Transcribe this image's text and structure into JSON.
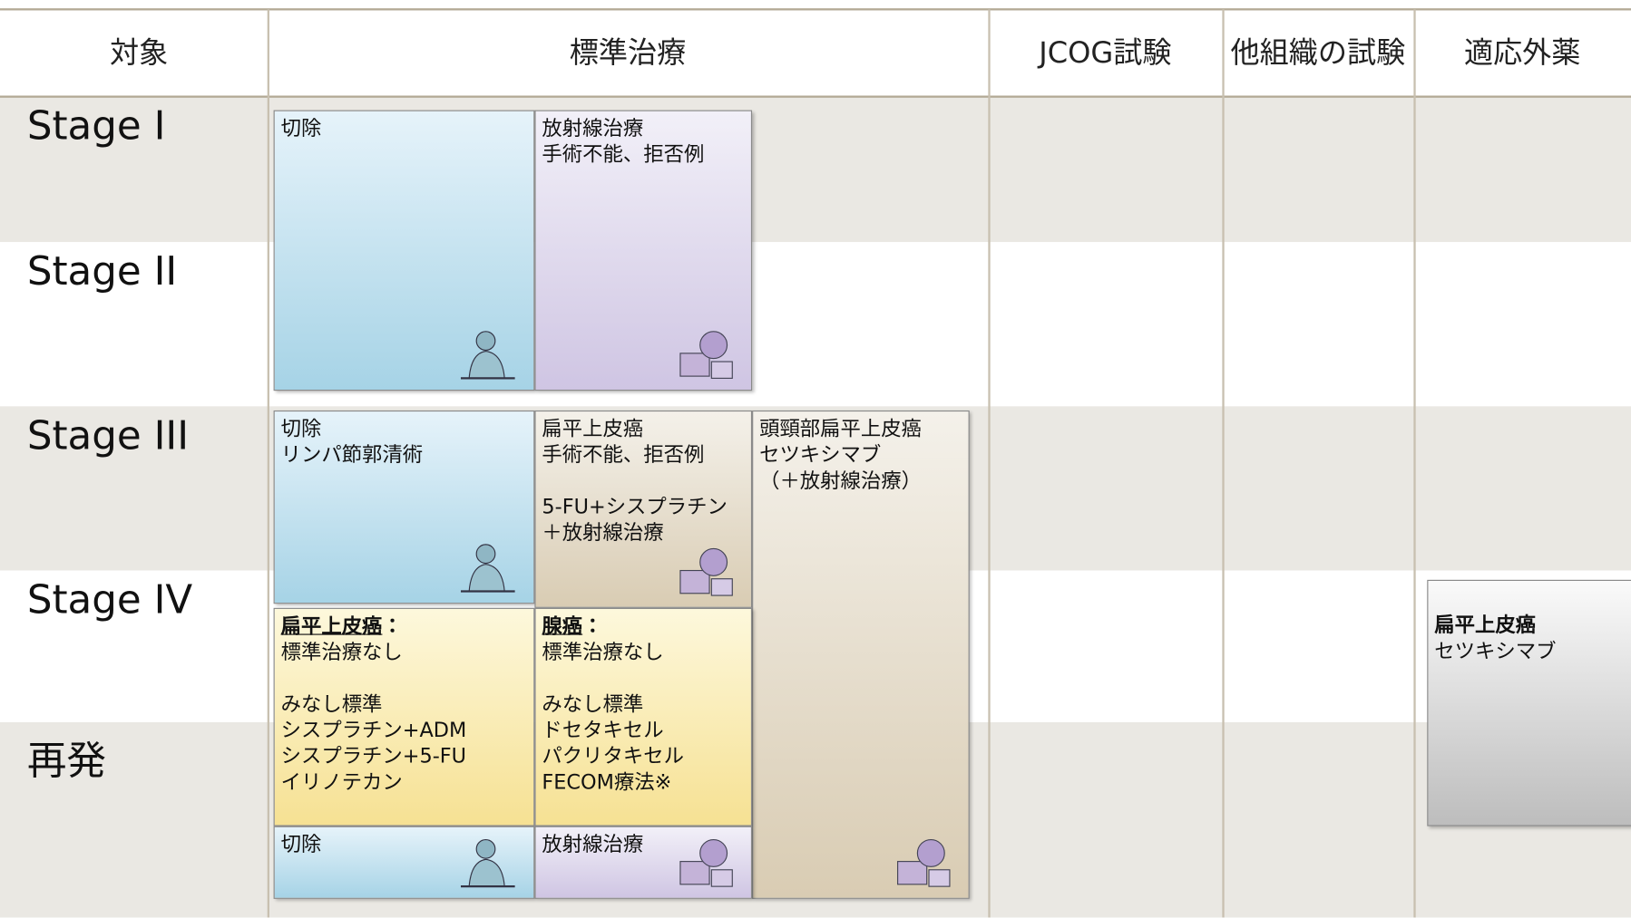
{
  "header": {
    "columns": [
      "対象",
      "標準治療",
      "JCOG試験",
      "他組織の試験",
      "適応外薬"
    ]
  },
  "rows": [
    "Stage I",
    "Stage II",
    "Stage III",
    "Stage IV",
    "再発"
  ],
  "boxes": [
    {
      "paragraphs": [
        [
          "切除"
        ]
      ]
    },
    {
      "paragraphs": [
        [
          "放射線治療",
          "手術不能、拒否例"
        ]
      ]
    },
    {
      "paragraphs": [
        [
          "切除",
          "リンパ節郭清術"
        ]
      ]
    },
    {
      "paragraphs": [
        [
          "扁平上皮癌",
          "手術不能、拒否例"
        ],
        [
          "5-FU+シスプラチン",
          "＋放射線治療"
        ]
      ]
    },
    {
      "paragraphs": [
        [
          "頭頸部扁平上皮癌",
          "セツキシマブ",
          "（＋放射線治療）"
        ]
      ]
    },
    {
      "heading": "扁平上皮癌",
      "heading_mark": "：",
      "paragraphs": [
        [
          "標準治療なし"
        ],
        [
          "みなし標準",
          "シスプラチン+ADM",
          "シスプラチン+5-FU",
          "イリノテカン"
        ]
      ]
    },
    {
      "heading": "腺癌",
      "heading_mark": "：",
      "paragraphs": [
        [
          "標準治療なし"
        ],
        [
          "みなし標準",
          "ドセタキセル",
          "パクリタキセル",
          "FECOM療法※"
        ]
      ]
    },
    {
      "paragraphs": [
        [
          "切除"
        ]
      ]
    },
    {
      "paragraphs": [
        [
          "放射線治療"
        ]
      ]
    },
    {
      "heading": "扁平上皮癌",
      "paragraphs": [
        [
          "セツキシマブ"
        ]
      ]
    }
  ]
}
